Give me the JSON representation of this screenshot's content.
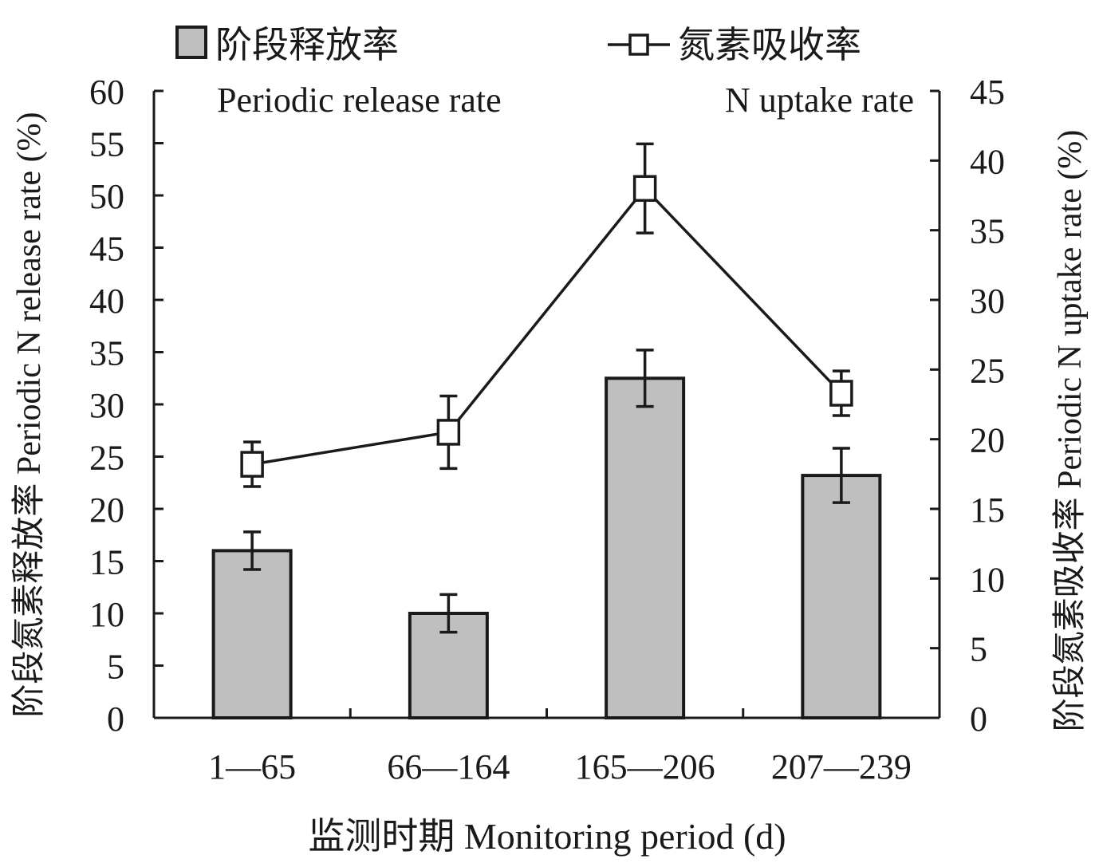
{
  "chart_data": {
    "type": "bar",
    "categories": [
      "1—65",
      "66—164",
      "165—206",
      "207—239"
    ],
    "series": [
      {
        "name": "阶段释放率",
        "name_en": "Periodic release rate",
        "type": "bar",
        "axis": "left",
        "values": [
          16.0,
          10.0,
          32.5,
          23.2
        ],
        "errors": [
          1.8,
          1.8,
          2.7,
          2.6
        ]
      },
      {
        "name": "氮素吸收率",
        "name_en": "N uptake rate",
        "type": "line",
        "axis": "right",
        "marker": "open-square",
        "values": [
          18.2,
          20.5,
          38.0,
          23.3
        ],
        "errors": [
          1.6,
          2.6,
          3.2,
          1.6
        ]
      }
    ],
    "xlabel": "监测时期 Monitoring period (d)",
    "ylabel": "阶段氮素释放率 Periodic N release rate (%)",
    "y2label": "阶段氮素吸收率 Periodic N uptake rate (%)",
    "ylim": [
      0,
      60
    ],
    "y2lim": [
      0,
      45
    ],
    "yticks": [
      0,
      5,
      10,
      15,
      20,
      25,
      30,
      35,
      40,
      45,
      50,
      55,
      60
    ],
    "y2ticks": [
      0,
      5,
      10,
      15,
      20,
      25,
      30,
      35,
      40,
      45
    ],
    "legend_position": "top",
    "grid": false,
    "colors": {
      "bar": "#bfbfbf",
      "ink": "#1a1a1a",
      "marker_fill": "#ffffff"
    }
  }
}
